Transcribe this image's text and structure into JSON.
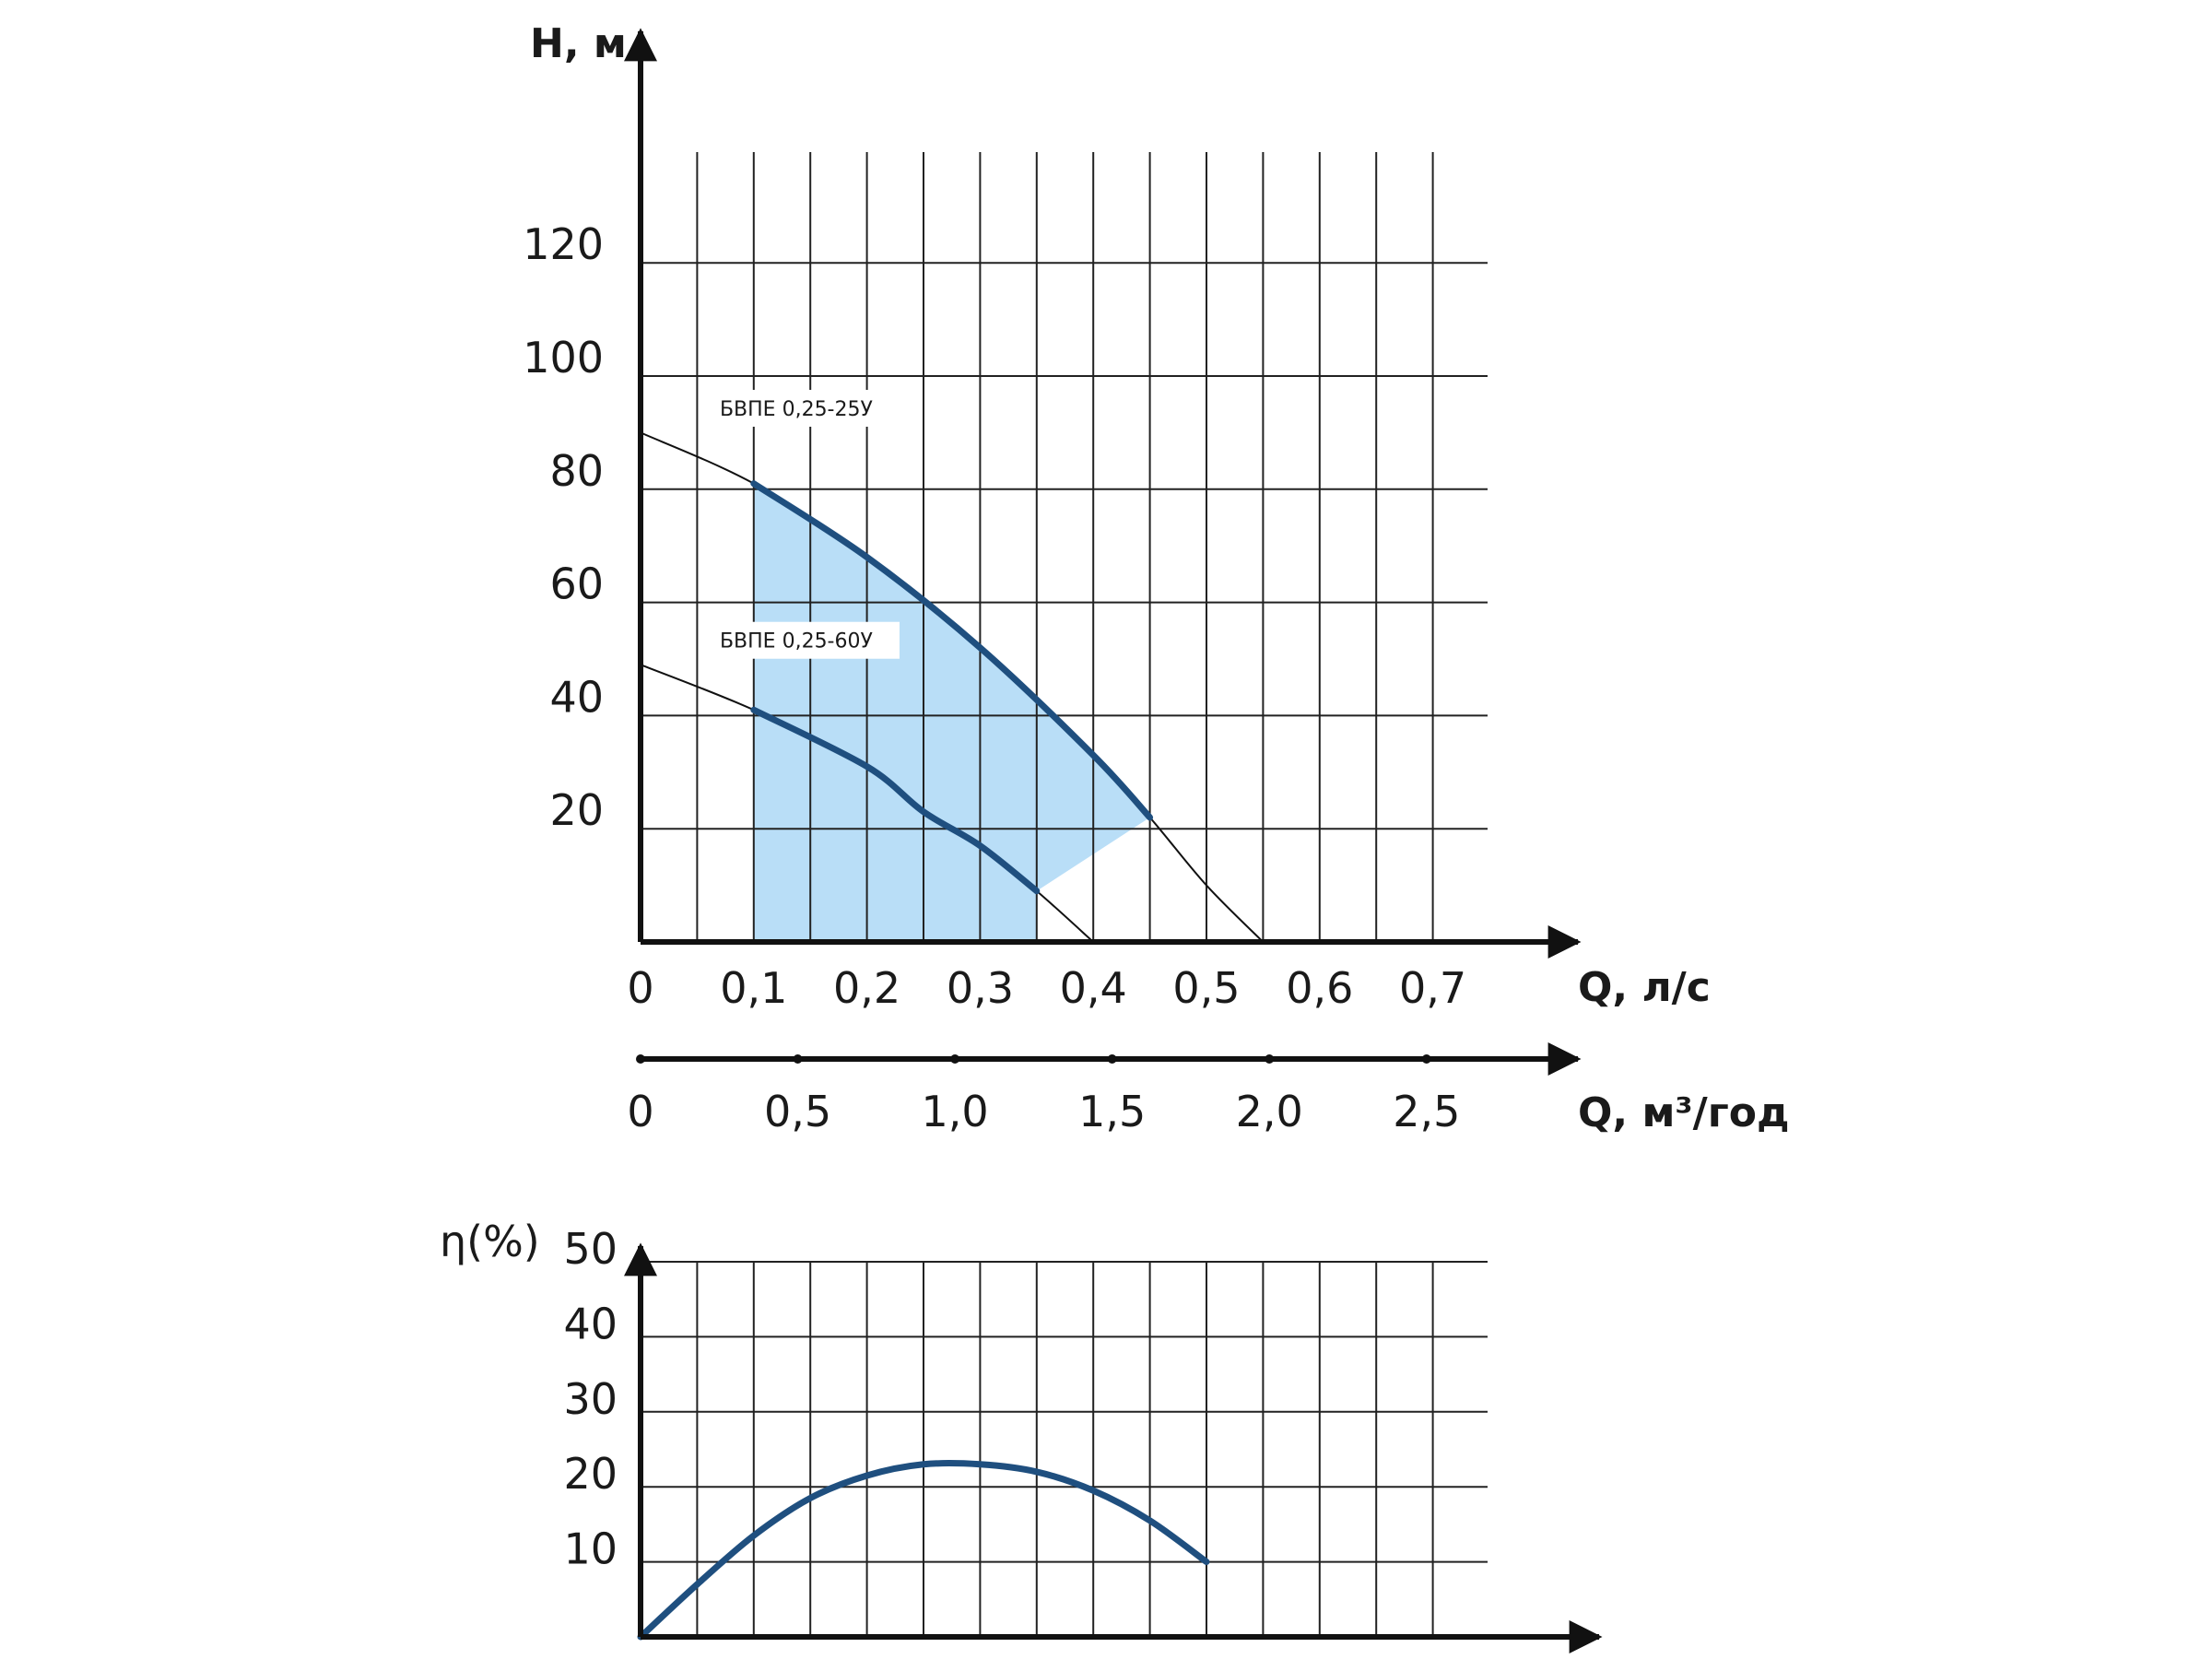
{
  "chart_data": [
    {
      "type": "line",
      "title": "",
      "ylabel": "H, м",
      "xlabel": "Q, л/с",
      "xlabel2": "Q, м³/год",
      "ylim": [
        0,
        140
      ],
      "xlim": [
        0,
        0.75
      ],
      "x_ticks": [
        "0",
        "0,1",
        "0,2",
        "0,3",
        "0,4",
        "0,5",
        "0,6",
        "0,7"
      ],
      "x_tick_values": [
        0,
        0.1,
        0.2,
        0.3,
        0.4,
        0.5,
        0.6,
        0.7
      ],
      "x2_ticks": [
        "0",
        "0,5",
        "1,0",
        "1,5",
        "2,0",
        "2,5"
      ],
      "x2_tick_values": [
        0,
        0.5,
        1.0,
        1.5,
        2.0,
        2.5
      ],
      "y_ticks": [
        "20",
        "40",
        "60",
        "80",
        "100",
        "120"
      ],
      "y_tick_values": [
        20,
        40,
        60,
        80,
        100,
        120
      ],
      "grid": true,
      "operating_zone_color": "#b9def7",
      "curve_color": "#1f4f7f",
      "series": [
        {
          "name": "БВПЕ 0,25-25У",
          "full_curve": [
            [
              0,
              90
            ],
            [
              0.1,
              81
            ],
            [
              0.2,
              68
            ],
            [
              0.3,
              52
            ],
            [
              0.4,
              33
            ],
            [
              0.45,
              22
            ],
            [
              0.5,
              10
            ],
            [
              0.55,
              0
            ]
          ],
          "working_range": [
            0.1,
            0.45
          ]
        },
        {
          "name": "БВПЕ 0,25-60У",
          "full_curve": [
            [
              0,
              49
            ],
            [
              0.1,
              41
            ],
            [
              0.2,
              31
            ],
            [
              0.25,
              23
            ],
            [
              0.3,
              17
            ],
            [
              0.35,
              9
            ],
            [
              0.4,
              0
            ]
          ],
          "working_range": [
            0.1,
            0.35
          ]
        }
      ]
    },
    {
      "type": "line",
      "title": "",
      "ylabel": "η(%)",
      "xlabel": "",
      "ylim": [
        0,
        50
      ],
      "xlim": [
        0,
        0.75
      ],
      "y_ticks": [
        "10",
        "20",
        "30",
        "40",
        "50"
      ],
      "y_tick_values": [
        10,
        20,
        30,
        40,
        50
      ],
      "grid": true,
      "series": [
        {
          "name": "",
          "values": [
            [
              0,
              0
            ],
            [
              0.05,
              7
            ],
            [
              0.1,
              13.5
            ],
            [
              0.15,
              18.5
            ],
            [
              0.2,
              21.5
            ],
            [
              0.25,
              23
            ],
            [
              0.3,
              23
            ],
            [
              0.35,
              22
            ],
            [
              0.4,
              19.5
            ],
            [
              0.45,
              15.5
            ],
            [
              0.5,
              10
            ]
          ]
        }
      ]
    }
  ]
}
